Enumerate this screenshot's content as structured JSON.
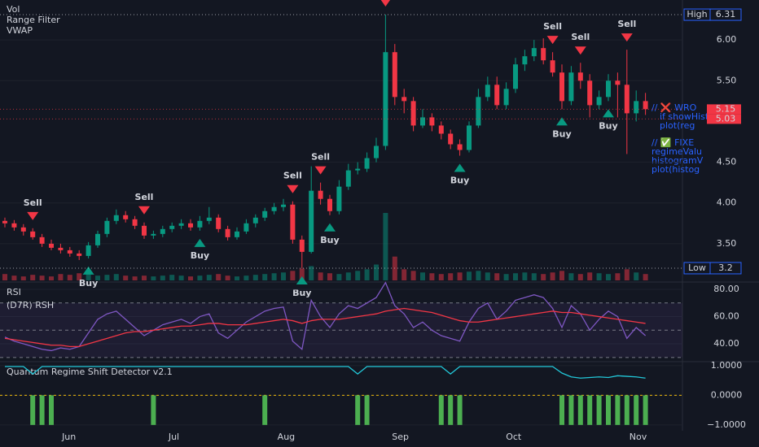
{
  "chart_data": [
    {
      "type": "candlestick",
      "legend_labels": [
        "Vol",
        "Range Filter",
        "VWAP"
      ],
      "up_color": "#089981",
      "down_color": "#f23645",
      "open": [
        3.78,
        3.75,
        3.7,
        3.65,
        3.58,
        3.5,
        3.45,
        3.42,
        3.38,
        3.35,
        3.48,
        3.62,
        3.78,
        3.85,
        3.8,
        3.72,
        3.6,
        3.62,
        3.68,
        3.72,
        3.75,
        3.7,
        3.78,
        3.82,
        3.68,
        3.58,
        3.65,
        3.75,
        3.82,
        3.9,
        3.95,
        3.98,
        3.55,
        3.4,
        4.15,
        4.05,
        3.9,
        4.2,
        4.4,
        4.42,
        4.55,
        4.7,
        5.85,
        5.3,
        5.25,
        4.95,
        5.05,
        4.95,
        4.85,
        4.72,
        4.65,
        4.95,
        5.3,
        5.45,
        5.2,
        5.4,
        5.7,
        5.8,
        5.9,
        5.75,
        5.6,
        5.25,
        5.6,
        5.5,
        5.2,
        5.3,
        5.5,
        5.45,
        5.1,
        5.25
      ],
      "high": [
        3.82,
        3.79,
        3.74,
        3.69,
        3.62,
        3.55,
        3.5,
        3.46,
        3.42,
        3.52,
        3.66,
        3.82,
        3.92,
        3.9,
        3.84,
        3.76,
        3.66,
        3.72,
        3.76,
        3.8,
        3.8,
        3.84,
        3.95,
        3.86,
        3.72,
        3.7,
        3.8,
        3.86,
        3.94,
        4.0,
        4.05,
        4.02,
        3.6,
        4.45,
        4.25,
        4.1,
        4.28,
        4.48,
        4.5,
        4.62,
        4.8,
        6.31,
        5.95,
        5.4,
        5.3,
        5.15,
        5.1,
        5.0,
        4.9,
        4.78,
        5.0,
        5.4,
        5.55,
        5.55,
        5.48,
        5.78,
        5.88,
        6.0,
        6.02,
        5.85,
        5.7,
        5.68,
        5.72,
        5.58,
        5.38,
        5.58,
        5.6,
        5.88,
        5.38,
        5.35
      ],
      "low": [
        3.7,
        3.66,
        3.6,
        3.55,
        3.46,
        3.42,
        3.38,
        3.34,
        3.3,
        3.32,
        3.45,
        3.58,
        3.74,
        3.76,
        3.68,
        3.56,
        3.56,
        3.58,
        3.64,
        3.68,
        3.66,
        3.66,
        3.74,
        3.64,
        3.54,
        3.55,
        3.62,
        3.7,
        3.78,
        3.86,
        3.9,
        3.5,
        3.2,
        3.38,
        3.98,
        3.85,
        3.86,
        4.16,
        4.35,
        4.38,
        4.5,
        4.65,
        5.2,
        5.1,
        4.88,
        4.92,
        4.88,
        4.78,
        4.66,
        4.58,
        4.62,
        4.92,
        5.25,
        5.15,
        5.15,
        5.35,
        5.62,
        5.74,
        5.7,
        5.55,
        5.15,
        5.2,
        5.4,
        5.05,
        5.15,
        5.25,
        5.05,
        4.6,
        5.0,
        5.08
      ],
      "close": [
        3.75,
        3.7,
        3.65,
        3.58,
        3.5,
        3.45,
        3.42,
        3.38,
        3.35,
        3.48,
        3.62,
        3.78,
        3.85,
        3.8,
        3.72,
        3.6,
        3.62,
        3.68,
        3.72,
        3.75,
        3.7,
        3.78,
        3.82,
        3.68,
        3.58,
        3.65,
        3.75,
        3.82,
        3.9,
        3.95,
        3.98,
        3.55,
        3.4,
        4.15,
        4.05,
        3.9,
        4.2,
        4.4,
        4.42,
        4.55,
        4.7,
        5.85,
        5.3,
        5.25,
        4.95,
        5.05,
        4.95,
        4.85,
        4.72,
        4.65,
        4.95,
        5.3,
        5.45,
        5.2,
        5.4,
        5.7,
        5.8,
        5.9,
        5.75,
        5.6,
        5.25,
        5.6,
        5.5,
        5.2,
        5.3,
        5.5,
        5.45,
        5.1,
        5.25,
        5.15
      ],
      "volume": [
        8,
        6,
        5,
        7,
        6,
        5,
        8,
        7,
        9,
        8,
        6,
        7,
        8,
        6,
        5,
        6,
        5,
        6,
        7,
        6,
        5,
        6,
        7,
        8,
        6,
        5,
        6,
        7,
        8,
        9,
        10,
        12,
        15,
        18,
        10,
        9,
        8,
        10,
        12,
        14,
        20,
        85,
        30,
        14,
        12,
        10,
        9,
        8,
        9,
        10,
        11,
        12,
        10,
        9,
        8,
        9,
        10,
        9,
        8,
        10,
        12,
        9,
        8,
        10,
        9,
        8,
        9,
        14,
        10,
        8
      ],
      "ylim": [
        3.05,
        6.49
      ],
      "yticks": [
        {
          "value": 3.5,
          "label": "3.50"
        },
        {
          "value": 4,
          "label": "4.00"
        },
        {
          "value": 4.5,
          "label": "4.50"
        },
        {
          "value": 5.5,
          "label": "5.50"
        },
        {
          "value": 6,
          "label": "6.00"
        }
      ],
      "xticks": [
        {
          "value": 6.9,
          "label": "Jun"
        },
        {
          "value": 18.2,
          "label": "Jul"
        },
        {
          "value": 30.3,
          "label": "Aug"
        },
        {
          "value": 42.6,
          "label": "Sep"
        },
        {
          "value": 54.8,
          "label": "Oct"
        },
        {
          "value": 68.2,
          "label": "Nov"
        }
      ],
      "price_markers": [
        {
          "label": "High",
          "value": 6.31,
          "color": "#d1d4dc"
        },
        {
          "value": 5.15,
          "color": "#f23645"
        },
        {
          "value": 5.03,
          "color": "#f23645"
        },
        {
          "label": "Low",
          "value": 3.2,
          "color": "#d1d4dc"
        }
      ],
      "signals": [
        {
          "index": 3,
          "label": "Sell"
        },
        {
          "index": 15,
          "label": "Sell"
        },
        {
          "index": 31,
          "label": "Sell"
        },
        {
          "index": 34,
          "label": "Sell"
        },
        {
          "index": 41,
          "label": "Sell"
        },
        {
          "index": 59,
          "label": "Sell"
        },
        {
          "index": 62,
          "label": "Sell"
        },
        {
          "index": 67,
          "label": "Sell"
        },
        {
          "index": 9,
          "label": "Buy"
        },
        {
          "index": 21,
          "label": "Buy"
        },
        {
          "index": 32,
          "label": "Buy"
        },
        {
          "index": 35,
          "label": "Buy"
        },
        {
          "index": 49,
          "label": "Buy"
        },
        {
          "index": 60,
          "label": "Buy"
        },
        {
          "index": 65,
          "label": "Buy"
        }
      ],
      "annotations": [
        "// ❌ WRO",
        "if showHist",
        "plot(reg",
        "// ✅ FIXE",
        "regimeValu",
        "histogramV",
        "plot(histog"
      ]
    },
    {
      "type": "line",
      "title": "RSI",
      "subtitle": "(D7R) RSH",
      "series": [
        {
          "color": "#7e57c2",
          "values": [
            45,
            42,
            40,
            38,
            36,
            35,
            37,
            36,
            38,
            48,
            58,
            62,
            64,
            58,
            52,
            46,
            50,
            54,
            56,
            58,
            55,
            60,
            62,
            48,
            44,
            50,
            56,
            60,
            64,
            66,
            67,
            42,
            36,
            72,
            60,
            52,
            62,
            68,
            66,
            70,
            74,
            85,
            68,
            62,
            52,
            56,
            50,
            46,
            44,
            42,
            56,
            66,
            70,
            58,
            64,
            72,
            74,
            76,
            74,
            66,
            52,
            68,
            62,
            50,
            58,
            64,
            60,
            44,
            52,
            46
          ]
        },
        {
          "color": "#f23645",
          "values": [
            44,
            43,
            42,
            41,
            40,
            39,
            39,
            38,
            38,
            40,
            42,
            44,
            46,
            48,
            49,
            49,
            50,
            51,
            52,
            53,
            53,
            54,
            55,
            55,
            54,
            54,
            54,
            55,
            56,
            57,
            58,
            57,
            55,
            57,
            58,
            58,
            58,
            59,
            60,
            61,
            62,
            64,
            65,
            66,
            65,
            64,
            63,
            61,
            59,
            57,
            56,
            56,
            57,
            58,
            59,
            60,
            61,
            62,
            63,
            64,
            63,
            63,
            62,
            61,
            60,
            59,
            58,
            57,
            56,
            55
          ]
        }
      ],
      "bands": [
        70,
        50,
        30
      ],
      "ylim": [
        28.1,
        83.6
      ],
      "yticks": [
        {
          "value": 80,
          "label": "80.00"
        },
        {
          "value": 60,
          "label": "60.00"
        },
        {
          "value": 40,
          "label": "40.00"
        }
      ]
    },
    {
      "type": "line-histogram",
      "title": "Quantum Regime Shift Detector v2.1",
      "line": {
        "color": "#22c7d8",
        "values": [
          0.97,
          0.97,
          0.97,
          0.72,
          0.97,
          0.97,
          0.97,
          0.97,
          0.97,
          0.97,
          0.97,
          0.97,
          0.97,
          0.97,
          0.97,
          0.97,
          0.97,
          0.97,
          0.97,
          0.97,
          0.97,
          0.97,
          0.97,
          0.97,
          0.97,
          0.97,
          0.97,
          0.97,
          0.97,
          0.97,
          0.97,
          0.97,
          0.97,
          0.97,
          0.97,
          0.97,
          0.97,
          0.97,
          0.72,
          0.97,
          0.97,
          0.97,
          0.97,
          0.97,
          0.97,
          0.97,
          0.97,
          0.97,
          0.72,
          0.97,
          0.97,
          0.97,
          0.97,
          0.97,
          0.97,
          0.97,
          0.97,
          0.97,
          0.97,
          0.97,
          0.75,
          0.62,
          0.58,
          0.6,
          0.62,
          0.6,
          0.66,
          0.64,
          0.62,
          0.58
        ]
      },
      "histogram": {
        "color": "#4caf50",
        "values": [
          0,
          0,
          0,
          -1,
          -1,
          -1,
          0,
          0,
          0,
          0,
          0,
          0,
          0,
          0,
          0,
          0,
          -1,
          0,
          0,
          0,
          0,
          0,
          0,
          0,
          0,
          0,
          0,
          0,
          -1,
          0,
          0,
          0,
          0,
          0,
          0,
          0,
          0,
          0,
          -1,
          -1,
          0,
          0,
          0,
          0,
          0,
          0,
          0,
          -1,
          -1,
          -1,
          0,
          0,
          0,
          0,
          0,
          0,
          0,
          0,
          0,
          0,
          -1,
          -1,
          -1,
          -1,
          -1,
          -1,
          -1,
          -1,
          -1,
          -1
        ]
      },
      "zero_line_color": "#f0b90b",
      "ylim": [
        -1.47,
        1.08
      ],
      "yticks": [
        {
          "value": 1,
          "label": "1.0000"
        },
        {
          "value": 0,
          "label": "0.0000"
        },
        {
          "value": -1,
          "label": "−1.0000"
        }
      ]
    }
  ]
}
